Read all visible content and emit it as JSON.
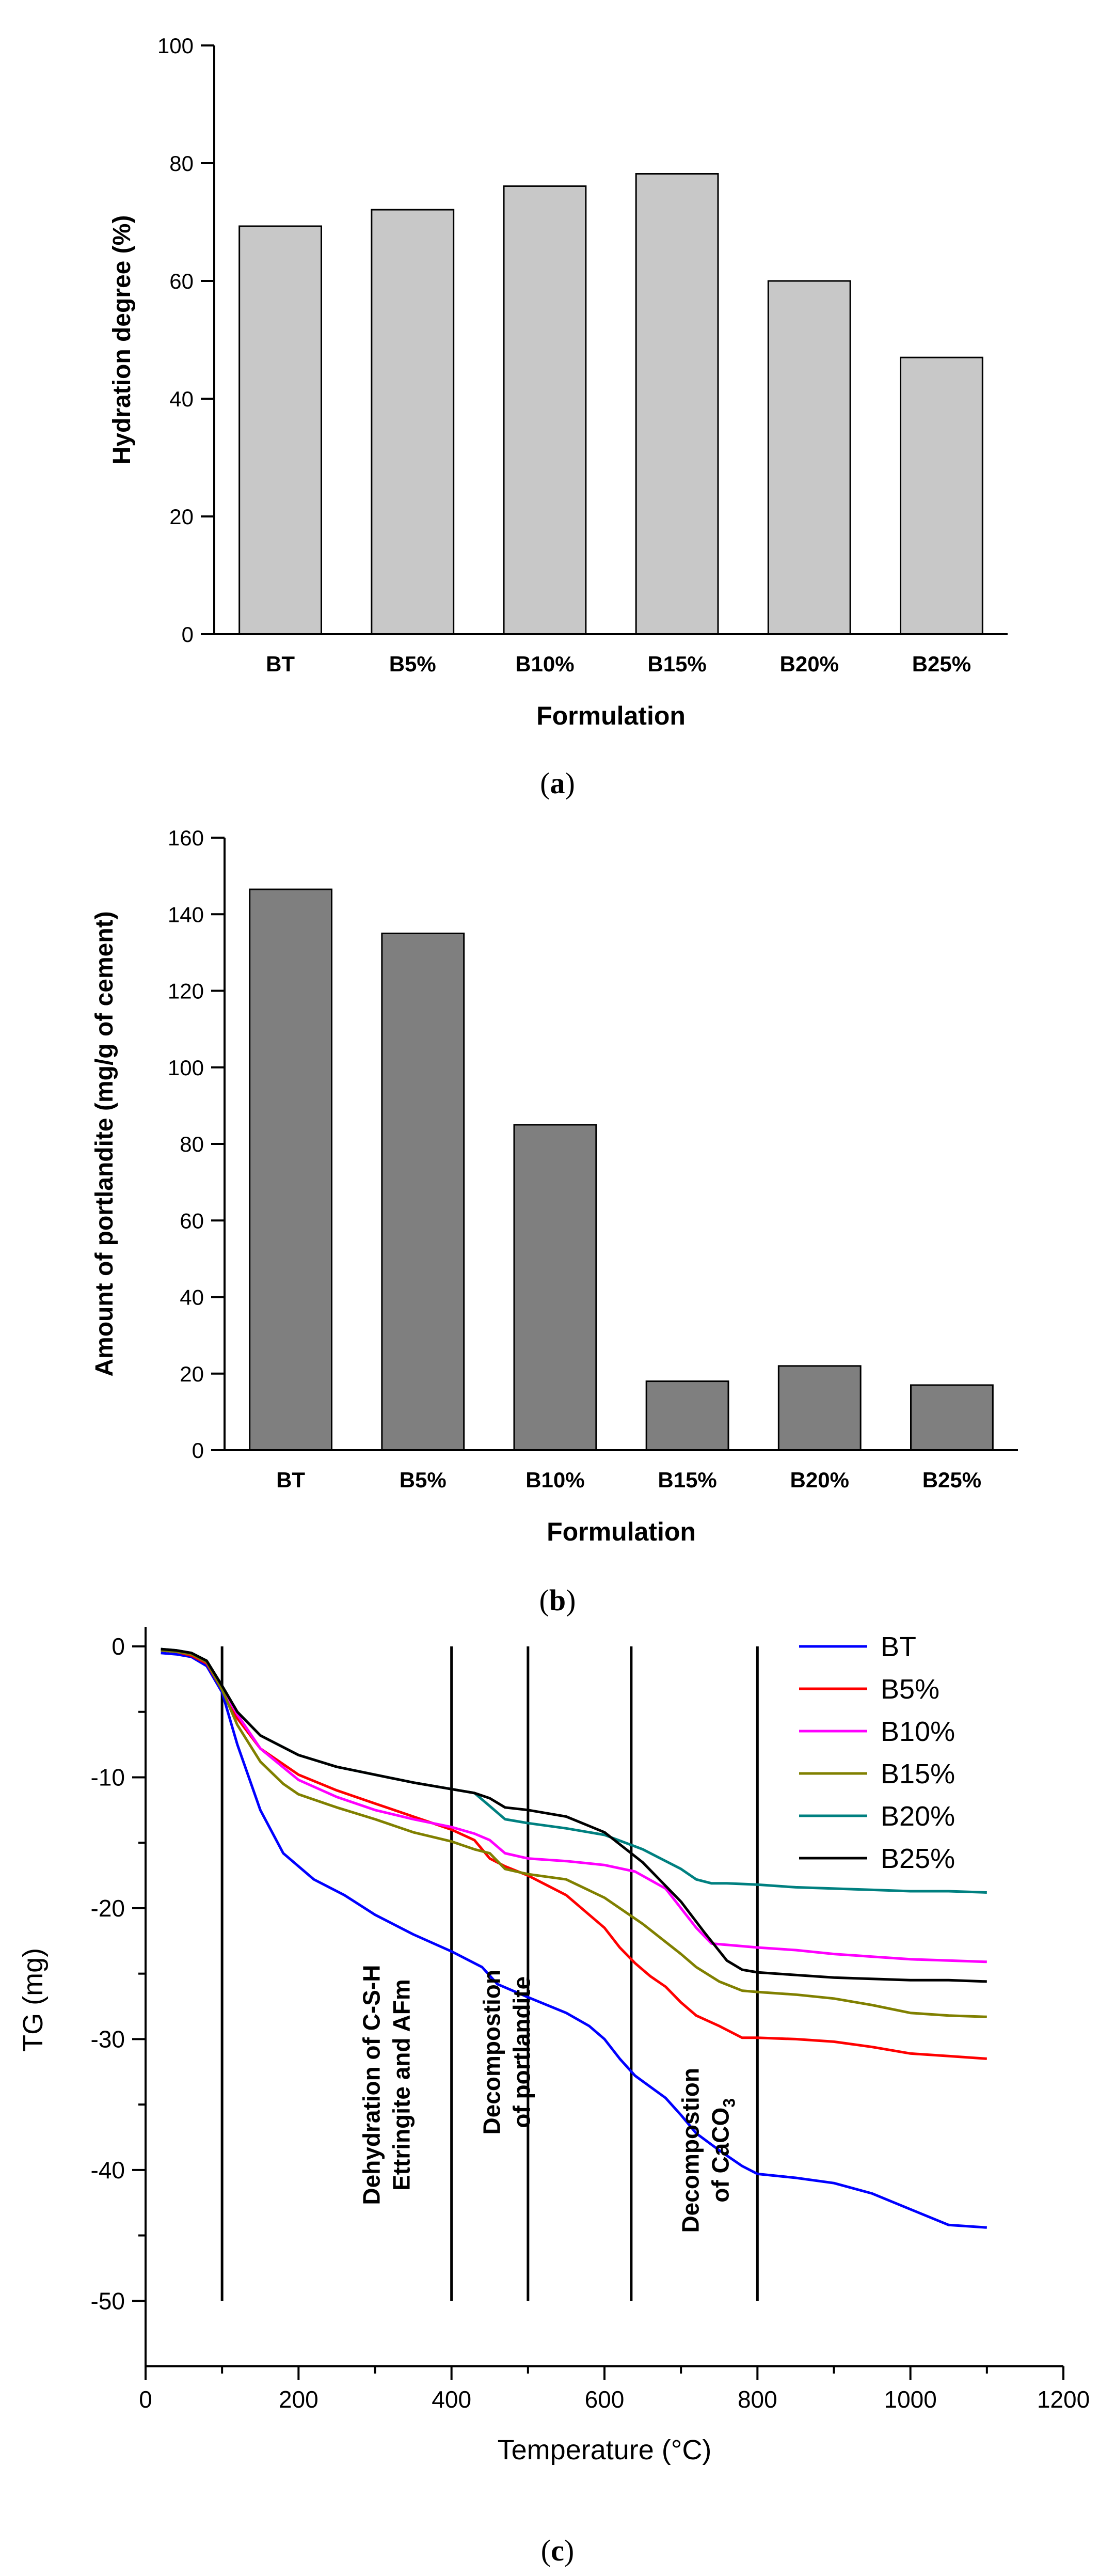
{
  "chart_data": [
    {
      "type": "bar",
      "panel_label": "a",
      "xlabel": "Formulation",
      "ylabel": "Hydration degree (%)",
      "categories": [
        "BT",
        "B5%",
        "B10%",
        "B15%",
        "B20%",
        "B25%"
      ],
      "values": [
        69.3,
        72.1,
        76.1,
        78.2,
        60.0,
        47.0
      ],
      "ylim": [
        0,
        100
      ],
      "yticks": [
        "0",
        "20",
        "40",
        "60",
        "80",
        "100"
      ],
      "bar_color": "#c8c8c8"
    },
    {
      "type": "bar",
      "panel_label": "b",
      "xlabel": "Formulation",
      "ylabel": "Amount of portlandite (mg/g of cement)",
      "categories": [
        "BT",
        "B5%",
        "B10%",
        "B15%",
        "B20%",
        "B25%"
      ],
      "values": [
        146.5,
        135.0,
        85.0,
        18.0,
        22.0,
        17.0
      ],
      "ylim": [
        0,
        160
      ],
      "yticks": [
        "0",
        "20",
        "40",
        "60",
        "80",
        "100",
        "120",
        "140",
        "160"
      ],
      "bar_color": "#7f7f7f"
    },
    {
      "type": "line",
      "panel_label": "c",
      "xlabel": "Temperature (°C)",
      "ylabel": "TG (mg)",
      "xlim": [
        0,
        1200
      ],
      "ylim": [
        -55,
        1.5
      ],
      "xticks": [
        "0",
        "200",
        "400",
        "600",
        "800",
        "1000",
        "1200"
      ],
      "yticks": [
        "-50",
        "-40",
        "-30",
        "-20",
        "-10",
        "0"
      ],
      "legend_position": "top-right",
      "series": [
        {
          "name": "BT",
          "color": "#0000ff",
          "x": [
            20,
            40,
            60,
            80,
            100,
            120,
            150,
            180,
            220,
            260,
            300,
            350,
            400,
            440,
            460,
            500,
            550,
            580,
            600,
            620,
            640,
            680,
            700,
            720,
            750,
            780,
            800,
            850,
            900,
            950,
            1000,
            1050,
            1100
          ],
          "y": [
            -0.5,
            -0.6,
            -0.8,
            -1.5,
            -3.5,
            -7.5,
            -12.5,
            -15.8,
            -17.8,
            -19.0,
            -20.5,
            -22.0,
            -23.3,
            -24.5,
            -25.8,
            -26.8,
            -28.0,
            -29.0,
            -30.0,
            -31.5,
            -32.8,
            -34.5,
            -35.8,
            -37.2,
            -38.5,
            -39.7,
            -40.3,
            -40.6,
            -41.0,
            -41.8,
            -43.0,
            -44.2,
            -44.4
          ]
        },
        {
          "name": "B5%",
          "color": "#ff0000",
          "x": [
            20,
            40,
            60,
            80,
            100,
            120,
            150,
            200,
            250,
            300,
            350,
            400,
            430,
            450,
            470,
            500,
            550,
            580,
            600,
            620,
            640,
            660,
            680,
            700,
            720,
            750,
            780,
            800,
            850,
            900,
            950,
            1000,
            1050,
            1100
          ],
          "y": [
            -0.3,
            -0.4,
            -0.7,
            -1.3,
            -3.3,
            -5.5,
            -7.8,
            -9.8,
            -11.0,
            -12.0,
            -13.0,
            -14.0,
            -14.8,
            -16.2,
            -16.8,
            -17.5,
            -19.0,
            -20.5,
            -21.5,
            -23.0,
            -24.2,
            -25.2,
            -26.0,
            -27.2,
            -28.2,
            -29.0,
            -29.9,
            -29.9,
            -30.0,
            -30.2,
            -30.6,
            -31.1,
            -31.3,
            -31.5
          ]
        },
        {
          "name": "B10%",
          "color": "#ff00ff",
          "x": [
            20,
            40,
            60,
            80,
            100,
            120,
            150,
            200,
            250,
            300,
            350,
            400,
            430,
            450,
            470,
            500,
            550,
            600,
            640,
            680,
            700,
            720,
            740,
            760,
            800,
            850,
            900,
            950,
            1000,
            1050,
            1100
          ],
          "y": [
            -0.3,
            -0.4,
            -0.6,
            -1.2,
            -3.2,
            -5.2,
            -7.8,
            -10.2,
            -11.5,
            -12.5,
            -13.2,
            -13.8,
            -14.3,
            -14.8,
            -15.8,
            -16.2,
            -16.4,
            -16.7,
            -17.2,
            -18.5,
            -20.0,
            -21.5,
            -22.7,
            -22.8,
            -23.0,
            -23.2,
            -23.5,
            -23.7,
            -23.9,
            -24.0,
            -24.1
          ]
        },
        {
          "name": "B15%",
          "color": "#808000",
          "x": [
            20,
            40,
            60,
            80,
            100,
            120,
            150,
            180,
            200,
            250,
            300,
            350,
            400,
            430,
            450,
            470,
            500,
            550,
            600,
            650,
            700,
            720,
            750,
            780,
            800,
            850,
            900,
            950,
            1000,
            1050,
            1100
          ],
          "y": [
            -0.3,
            -0.4,
            -0.6,
            -1.2,
            -3.3,
            -6.0,
            -8.8,
            -10.5,
            -11.3,
            -12.3,
            -13.2,
            -14.2,
            -14.9,
            -15.5,
            -15.8,
            -17.0,
            -17.4,
            -17.8,
            -19.2,
            -21.2,
            -23.5,
            -24.5,
            -25.6,
            -26.3,
            -26.4,
            -26.6,
            -26.9,
            -27.4,
            -28.0,
            -28.2,
            -28.3
          ]
        },
        {
          "name": "B20%",
          "color": "#008080",
          "x": [
            20,
            40,
            60,
            80,
            100,
            120,
            150,
            200,
            250,
            300,
            350,
            400,
            430,
            450,
            470,
            500,
            550,
            600,
            650,
            700,
            720,
            740,
            760,
            800,
            850,
            900,
            950,
            1000,
            1050,
            1100
          ],
          "y": [
            -0.2,
            -0.3,
            -0.5,
            -1.1,
            -3.0,
            -5.0,
            -6.8,
            -8.3,
            -9.2,
            -9.8,
            -10.4,
            -10.9,
            -11.2,
            -12.2,
            -13.2,
            -13.5,
            -13.9,
            -14.4,
            -15.5,
            -17.0,
            -17.8,
            -18.1,
            -18.1,
            -18.2,
            -18.4,
            -18.5,
            -18.6,
            -18.7,
            -18.7,
            -18.8
          ]
        },
        {
          "name": "B25%",
          "color": "#000000",
          "x": [
            20,
            40,
            60,
            80,
            100,
            120,
            150,
            200,
            250,
            300,
            350,
            400,
            430,
            450,
            470,
            500,
            550,
            600,
            650,
            700,
            730,
            760,
            780,
            800,
            850,
            900,
            950,
            1000,
            1050,
            1100
          ],
          "y": [
            -0.2,
            -0.3,
            -0.5,
            -1.1,
            -3.0,
            -5.0,
            -6.8,
            -8.3,
            -9.2,
            -9.8,
            -10.4,
            -10.9,
            -11.2,
            -11.6,
            -12.3,
            -12.5,
            -13.0,
            -14.2,
            -16.5,
            -19.5,
            -21.8,
            -24.0,
            -24.7,
            -24.9,
            -25.1,
            -25.3,
            -25.4,
            -25.5,
            -25.5,
            -25.6
          ]
        }
      ],
      "vertical_lines_x": [
        100,
        400,
        500,
        635,
        800
      ],
      "vertical_line_ylim": [
        -50,
        0
      ],
      "annotations": [
        {
          "lines": [
            "Dehydration of C-S-H",
            "Ettringite and AFm"
          ],
          "x": 315,
          "y_center": -33.5
        },
        {
          "lines": [
            "Decompostion",
            "of portlandite"
          ],
          "x": 472,
          "y_center": -31
        },
        {
          "lines": [
            "Decompostion",
            "of CaCO3"
          ],
          "subscript": "3",
          "x": 732,
          "y_center": -38.5
        }
      ]
    }
  ]
}
